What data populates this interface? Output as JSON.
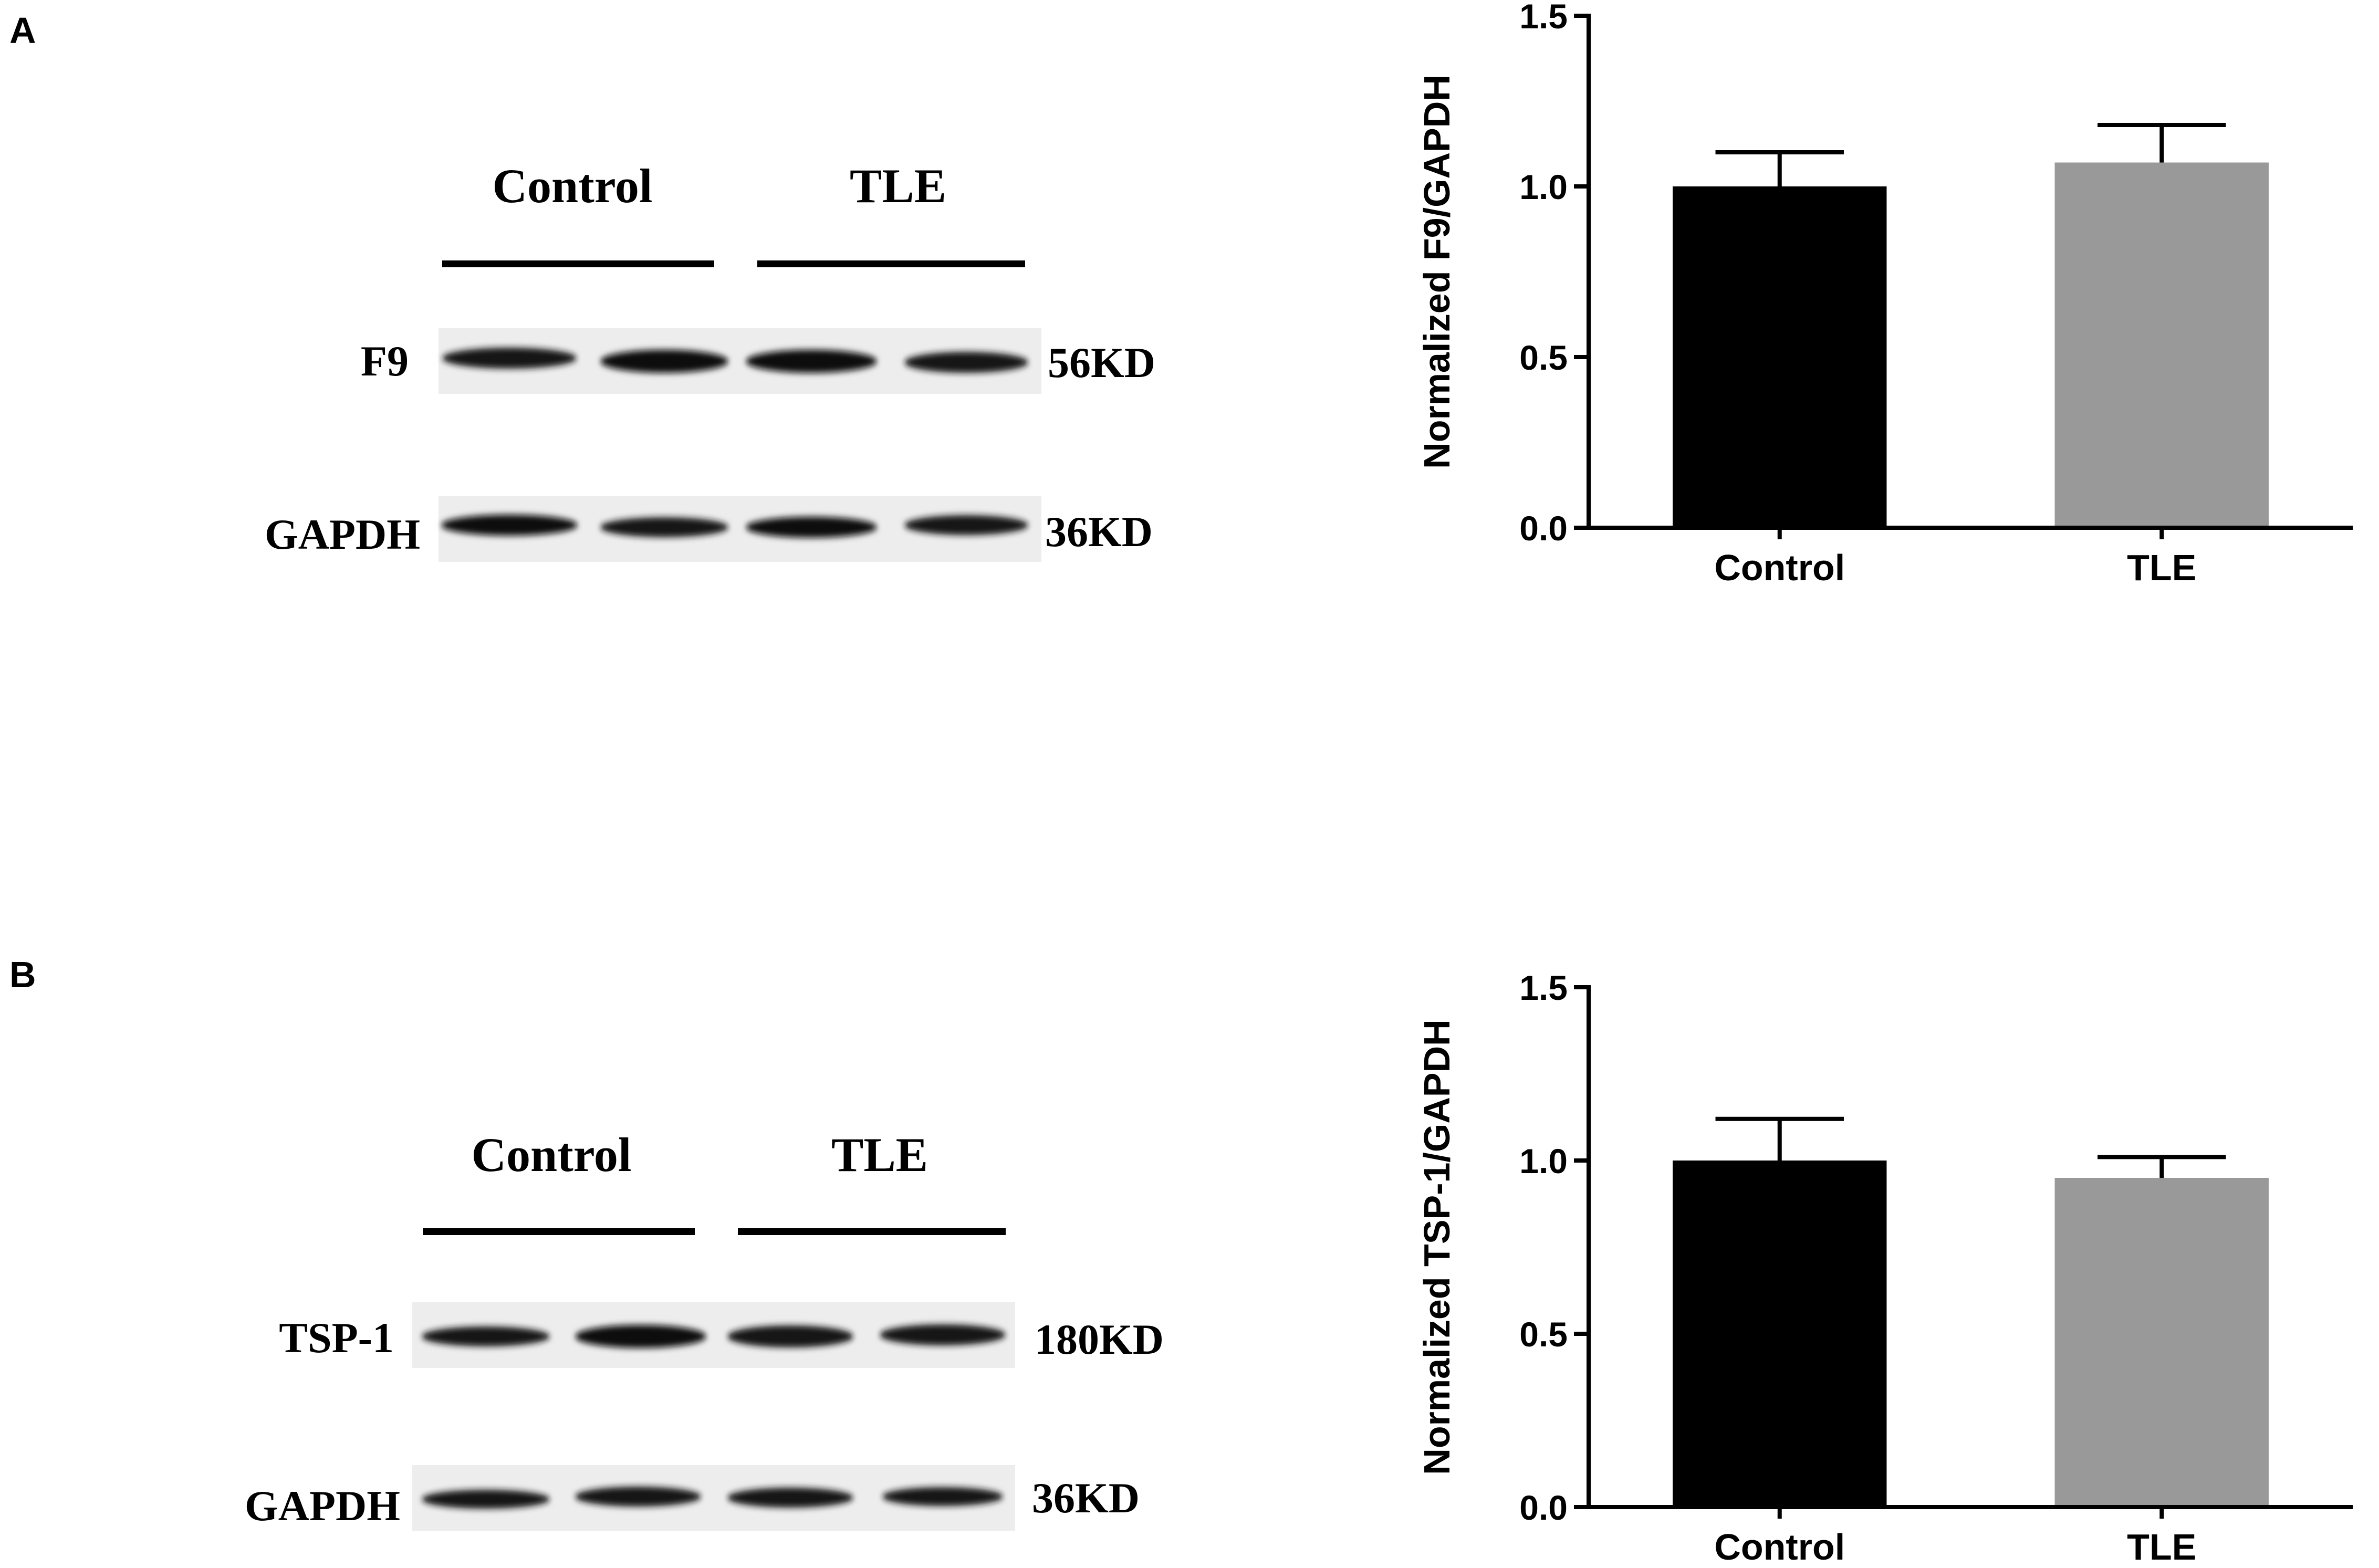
{
  "panels": [
    {
      "letter": "A",
      "blot": {
        "groups": [
          "Control",
          "TLE"
        ],
        "rows": [
          {
            "label": "F9",
            "size": "56KD"
          },
          {
            "label": "GAPDH",
            "size": "36KD"
          }
        ]
      },
      "chart_data": {
        "type": "bar",
        "categories": [
          "Control",
          "TLE"
        ],
        "values": [
          1.0,
          1.07
        ],
        "errors": [
          0.1,
          0.11
        ],
        "ylabel": "Normalized F9/GAPDH",
        "ylim": [
          0,
          1.5
        ],
        "yticks": [
          "0.0",
          "0.5",
          "1.0",
          "1.5"
        ],
        "colors": [
          "#000000",
          "#999999"
        ]
      }
    },
    {
      "letter": "B",
      "blot": {
        "groups": [
          "Control",
          "TLE"
        ],
        "rows": [
          {
            "label": "TSP-1",
            "size": "180KD"
          },
          {
            "label": "GAPDH",
            "size": "36KD"
          }
        ]
      },
      "chart_data": {
        "type": "bar",
        "categories": [
          "Control",
          "TLE"
        ],
        "values": [
          1.0,
          0.95
        ],
        "errors": [
          0.12,
          0.06
        ],
        "ylabel": "Normalized TSP-1/GAPDH",
        "ylim": [
          0,
          1.5
        ],
        "yticks": [
          "0.0",
          "0.5",
          "1.0",
          "1.5"
        ],
        "colors": [
          "#000000",
          "#999999"
        ]
      }
    }
  ]
}
